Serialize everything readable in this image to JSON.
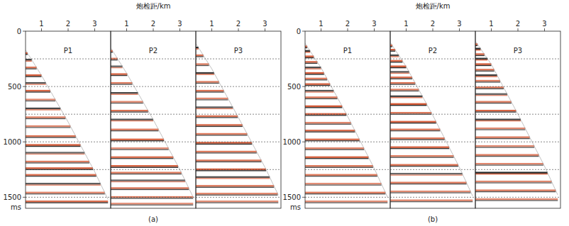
{
  "chart_data": [
    {
      "type": "seismic_gather",
      "caption": "(a)",
      "x_label": "炮检距/km",
      "y_unit": "ms",
      "xlim": [
        0.4,
        3.6
      ],
      "xticks": [
        1,
        2,
        3
      ],
      "ylim": [
        0,
        1600
      ],
      "yticks": [
        0,
        500,
        1000,
        1500
      ],
      "grid": [
        250,
        500,
        750,
        1000,
        1250,
        1500
      ],
      "panels": [
        {
          "label": "P1",
          "mute": {
            "x": [
              0.4,
              1,
              2,
              3,
              3.5
            ],
            "t": [
              170,
              400,
              820,
              1270,
              1520
            ]
          },
          "events": {
            "t": [
              200,
              260,
              330,
              400,
              470,
              540,
              620,
              700,
              780,
              860,
              950,
              1030,
              1100,
              1180,
              1240,
              1300,
              1380,
              1460,
              1540
            ],
            "amp": [
              0.9,
              -0.8,
              0.7,
              0.9,
              -0.6,
              0.8,
              0.5,
              -0.7,
              0.6,
              0.5,
              0.7,
              0.9,
              -0.5,
              0.6,
              0.9,
              0.7,
              -0.6,
              0.5,
              0.8
            ]
          }
        },
        {
          "label": "P2",
          "mute": {
            "x": [
              0.4,
              1,
              2,
              3,
              3.5
            ],
            "t": [
              150,
              380,
              800,
              1250,
              1500
            ]
          },
          "events": {
            "t": [
              180,
              250,
              320,
              390,
              470,
              560,
              640,
              720,
              800,
              890,
              980,
              1060,
              1140,
              1220,
              1280,
              1350,
              1420,
              1500,
              1560
            ],
            "amp": [
              0.7,
              0.6,
              -0.5,
              0.8,
              0.6,
              -0.7,
              0.5,
              0.7,
              -0.6,
              0.6,
              0.8,
              0.5,
              0.7,
              0.9,
              0.6,
              -0.5,
              0.7,
              0.6,
              0.5
            ]
          }
        },
        {
          "label": "P3",
          "mute": {
            "x": [
              0.4,
              1,
              2,
              3,
              3.5
            ],
            "t": [
              110,
              340,
              780,
              1230,
              1480
            ]
          },
          "events": {
            "t": [
              150,
              220,
              300,
              380,
              460,
              540,
              610,
              690,
              770,
              850,
              930,
              1010,
              1090,
              1170,
              1250,
              1320,
              1400,
              1470,
              1540
            ],
            "amp": [
              -0.9,
              0.7,
              0.6,
              -0.8,
              0.6,
              0.7,
              0.5,
              -0.6,
              0.7,
              0.8,
              0.6,
              0.9,
              0.6,
              0.7,
              0.9,
              -0.6,
              0.7,
              0.6,
              0.5
            ]
          }
        }
      ]
    },
    {
      "type": "seismic_gather",
      "caption": "(b)",
      "x_label": "炮检距/km",
      "y_unit": "ms",
      "xlim": [
        0.4,
        3.6
      ],
      "xticks": [
        1,
        2,
        3
      ],
      "ylim": [
        0,
        1600
      ],
      "yticks": [
        0,
        500,
        1000,
        1500
      ],
      "grid": [
        250,
        500,
        750,
        1000,
        1250,
        1500
      ],
      "panels": [
        {
          "label": "P1",
          "mute": {
            "x": [
              0.4,
              1,
              2,
              3,
              3.5
            ],
            "t": [
              110,
              330,
              770,
              1240,
              1500
            ]
          },
          "events": {
            "t": [
              140,
              180,
              230,
              280,
              330,
              380,
              430,
              480,
              540,
              600,
              680,
              750,
              830,
              900,
              980,
              1060,
              1140,
              1220,
              1300,
              1380,
              1460,
              1540
            ],
            "amp": [
              0.9,
              -0.8,
              0.9,
              0.8,
              -0.7,
              0.9,
              0.6,
              0.8,
              -0.6,
              0.7,
              0.9,
              0.8,
              0.6,
              0.8,
              0.7,
              0.6,
              0.8,
              0.7,
              0.6,
              0.5,
              0.6,
              0.5
            ]
          }
        },
        {
          "label": "P2",
          "mute": {
            "x": [
              0.4,
              1,
              2,
              3,
              3.5
            ],
            "t": [
              100,
              320,
              760,
              1230,
              1490
            ]
          },
          "events": {
            "t": [
              130,
              170,
              220,
              270,
              320,
              370,
              420,
              470,
              530,
              590,
              660,
              740,
              820,
              890,
              970,
              1050,
              1130,
              1210,
              1290,
              1370,
              1450,
              1530
            ],
            "amp": [
              0.8,
              0.9,
              -0.7,
              0.8,
              0.9,
              -0.6,
              0.8,
              0.7,
              0.6,
              -0.7,
              0.9,
              0.7,
              0.8,
              0.6,
              0.7,
              0.8,
              0.6,
              0.7,
              -0.5,
              0.6,
              0.5,
              0.5
            ]
          }
        },
        {
          "label": "P3",
          "mute": {
            "x": [
              0.4,
              1,
              2,
              3,
              3.5
            ],
            "t": [
              90,
              300,
              750,
              1220,
              1480
            ]
          },
          "events": {
            "t": [
              120,
              160,
              210,
              250,
              300,
              350,
              400,
              450,
              510,
              570,
              640,
              720,
              800,
              880,
              960,
              1040,
              1120,
              1200,
              1280,
              1360,
              1440,
              1520
            ],
            "amp": [
              0.9,
              -0.9,
              0.8,
              -0.8,
              0.9,
              0.7,
              -0.8,
              0.6,
              0.7,
              -0.5,
              0.6,
              0.8,
              -0.7,
              0.5,
              0.6,
              0.5,
              0.6,
              0.5,
              -0.9,
              0.5,
              0.6,
              0.5
            ]
          }
        }
      ]
    }
  ]
}
